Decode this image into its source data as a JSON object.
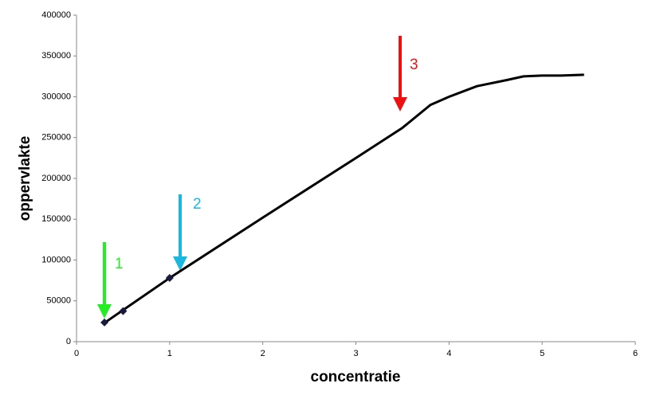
{
  "chart_data": {
    "type": "scatter",
    "x_label": "concentratie",
    "y_label": "oppervlakte",
    "xlim": [
      0,
      6
    ],
    "xticks": [
      0,
      1,
      2,
      3,
      4,
      5,
      6
    ],
    "ylim": [
      0,
      400000
    ],
    "yticks": [
      0,
      50000,
      100000,
      150000,
      200000,
      250000,
      300000,
      350000,
      400000
    ],
    "series": [
      {
        "mode": "markers",
        "color": "#1a1a40",
        "x": [
          0.3,
          0.5,
          1.0
        ],
        "values": [
          23500,
          37500,
          78000
        ]
      },
      {
        "mode": "line",
        "color": "#000000",
        "x": [
          0.3,
          1.0,
          2.0,
          3.0,
          3.5,
          3.8,
          4.0,
          4.3,
          4.6,
          4.8,
          5.0,
          5.2,
          5.45
        ],
        "values": [
          23000,
          78000,
          152000,
          225000,
          262000,
          290000,
          300000,
          313000,
          320000,
          325000,
          326000,
          326000,
          327000
        ]
      }
    ],
    "annotations": [
      {
        "text": "1",
        "color": "#22ee22"
      },
      {
        "text": "2",
        "color": "#1ab8e0"
      },
      {
        "text": "3",
        "color": "#ee1111"
      }
    ]
  }
}
